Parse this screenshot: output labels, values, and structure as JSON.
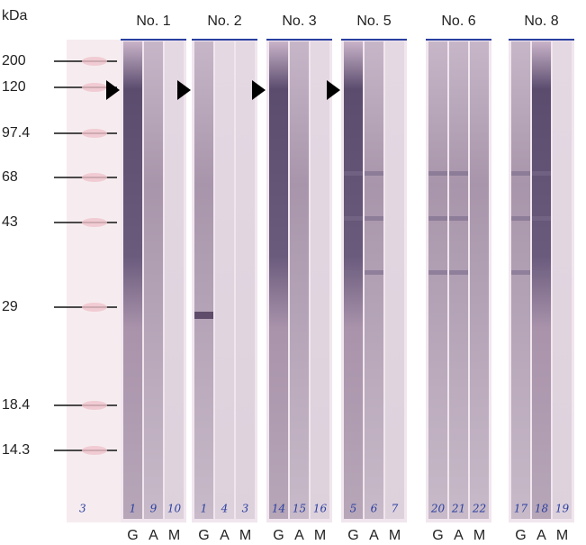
{
  "kda_label": "kDa",
  "markers": [
    "200",
    "120",
    "97.4",
    "68",
    "43",
    "29",
    "18.4",
    "14.3"
  ],
  "marker_strip_number": "3",
  "groups": [
    {
      "label": "No. 1",
      "lanes": [
        {
          "letter": "G",
          "number": "1"
        },
        {
          "letter": "A",
          "number": "9"
        },
        {
          "letter": "M",
          "number": "10"
        }
      ]
    },
    {
      "label": "No. 2",
      "lanes": [
        {
          "letter": "G",
          "number": "1"
        },
        {
          "letter": "A",
          "number": "4"
        },
        {
          "letter": "M",
          "number": "3"
        }
      ]
    },
    {
      "label": "No. 3",
      "lanes": [
        {
          "letter": "G",
          "number": "14"
        },
        {
          "letter": "A",
          "number": "15"
        },
        {
          "letter": "M",
          "number": "16"
        }
      ]
    },
    {
      "label": "No. 5",
      "lanes": [
        {
          "letter": "G",
          "number": "5"
        },
        {
          "letter": "A",
          "number": "6"
        },
        {
          "letter": "M",
          "number": "7"
        }
      ]
    },
    {
      "label": "No. 6",
      "lanes": [
        {
          "letter": "G",
          "number": "20"
        },
        {
          "letter": "A",
          "number": "21"
        },
        {
          "letter": "M",
          "number": "22"
        }
      ]
    },
    {
      "label": "No. 8",
      "lanes": [
        {
          "letter": "G",
          "number": "17"
        },
        {
          "letter": "A",
          "number": "18"
        },
        {
          "letter": "M",
          "number": "19"
        }
      ]
    }
  ]
}
